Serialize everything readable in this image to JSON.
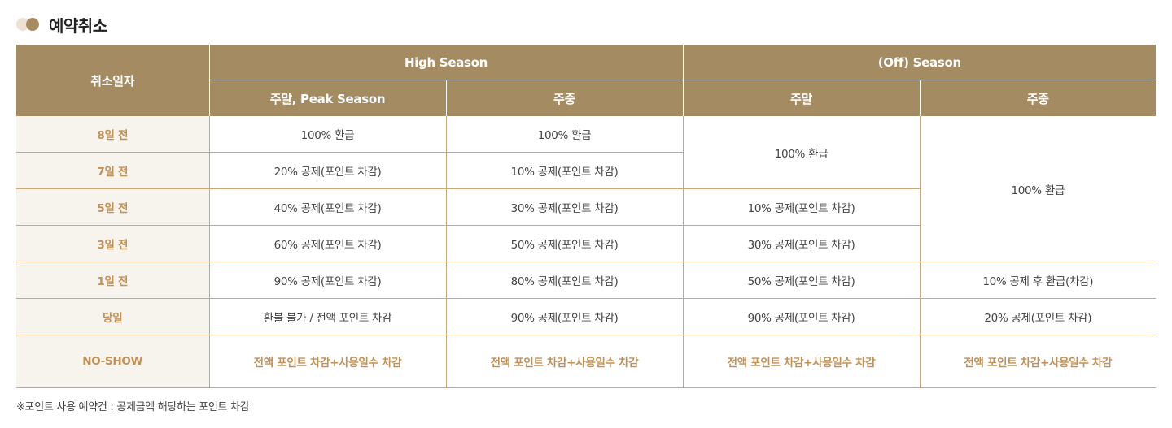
{
  "section_title": "예약취소",
  "table": {
    "header": {
      "cancel_date": "취소일자",
      "high_season": "High Season",
      "off_season": "(Off) Season",
      "high_weekend": "주말, Peak Season",
      "high_weekday": "주중",
      "off_weekend": "주말",
      "off_weekday": "주중"
    },
    "rows": {
      "d8": {
        "label": "8일 전",
        "high_weekend": "100% 환급",
        "high_weekday": "100% 환급",
        "off_weekend": "100% 환급",
        "off_weekday": "100% 환급"
      },
      "d7": {
        "label": "7일 전",
        "high_weekend": "20% 공제(포인트 차감)",
        "high_weekday": "10% 공제(포인트 차감)"
      },
      "d5": {
        "label": "5일 전",
        "high_weekend": "40% 공제(포인트 차감)",
        "high_weekday": "30% 공제(포인트 차감)",
        "off_weekend": "10% 공제(포인트 차감)"
      },
      "d3": {
        "label": "3일 전",
        "high_weekend": "60% 공제(포인트 차감)",
        "high_weekday": "50% 공제(포인트 차감)",
        "off_weekend": "30% 공제(포인트 차감)"
      },
      "d1": {
        "label": "1일 전",
        "high_weekend": "90% 공제(포인트 차감)",
        "high_weekday": "80% 공제(포인트 차감)",
        "off_weekend": "50% 공제(포인트 차감)",
        "off_weekday": "10% 공제 후 환급(차감)"
      },
      "d0": {
        "label": "당일",
        "high_weekend": "환불 불가 / 전액 포인트 차감",
        "high_weekday": "90% 공제(포인트 차감)",
        "off_weekend": "90% 공제(포인트 차감)",
        "off_weekday": "20% 공제(포인트 차감)"
      },
      "noshow": {
        "label": "NO-SHOW",
        "high_weekend": "전액 포인트 차감+사용일수 차감",
        "high_weekday": "전액 포인트 차감+사용일수 차감",
        "off_weekend": "전액 포인트 차감+사용일수 차감",
        "off_weekday": "전액 포인트 차감+사용일수 차감"
      }
    }
  },
  "footnote": "※포인트 사용 예약건 : 공제금액 해당하는 포인트 차감",
  "colors": {
    "header_bg": "#a48b62",
    "accent": "#c39155",
    "date_col_bg": "#f7f3ed",
    "border": "#c8a87c"
  }
}
